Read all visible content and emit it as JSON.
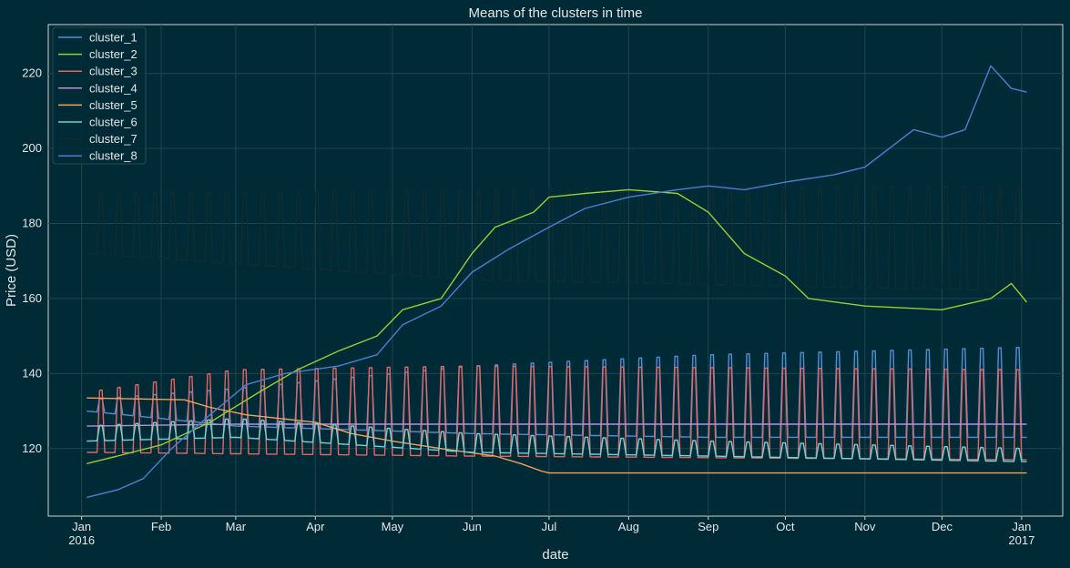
{
  "chart_data": {
    "type": "line",
    "title": "Means of the clusters in time",
    "xlabel": "date",
    "ylabel": "Price (USD)",
    "xlim": [
      "2015-12-19",
      "2017-01-17"
    ],
    "ylim": [
      102,
      233
    ],
    "grid": true,
    "legend_position": "top-left",
    "x_ticks": [
      {
        "date": "2016-01-01",
        "label": "Jan",
        "sublabel": "2016"
      },
      {
        "date": "2016-02-01",
        "label": "Feb",
        "sublabel": ""
      },
      {
        "date": "2016-03-01",
        "label": "Mar",
        "sublabel": ""
      },
      {
        "date": "2016-04-01",
        "label": "Apr",
        "sublabel": ""
      },
      {
        "date": "2016-05-01",
        "label": "May",
        "sublabel": ""
      },
      {
        "date": "2016-06-01",
        "label": "Jun",
        "sublabel": ""
      },
      {
        "date": "2016-07-01",
        "label": "Jul",
        "sublabel": ""
      },
      {
        "date": "2016-08-01",
        "label": "Aug",
        "sublabel": ""
      },
      {
        "date": "2016-09-01",
        "label": "Sep",
        "sublabel": ""
      },
      {
        "date": "2016-10-01",
        "label": "Oct",
        "sublabel": ""
      },
      {
        "date": "2016-11-01",
        "label": "Nov",
        "sublabel": ""
      },
      {
        "date": "2016-12-01",
        "label": "Dec",
        "sublabel": ""
      },
      {
        "date": "2017-01-01",
        "label": "Jan",
        "sublabel": "2017"
      }
    ],
    "y_ticks": [
      120,
      140,
      160,
      180,
      200,
      220
    ],
    "series": [
      {
        "name": "cluster_1",
        "color": "#4f8fd8",
        "baseline": [
          [
            "2016-01-03",
            130
          ],
          [
            "2016-03-01",
            126
          ],
          [
            "2016-06-01",
            124
          ],
          [
            "2016-09-01",
            123
          ],
          [
            "2017-01-03",
            123
          ]
        ],
        "peak": [
          [
            "2016-01-03",
            133
          ],
          [
            "2016-03-01",
            136
          ],
          [
            "2016-06-01",
            142
          ],
          [
            "2016-09-01",
            145
          ],
          [
            "2017-01-03",
            147
          ]
        ]
      },
      {
        "name": "cluster_2",
        "color": "#9acd32",
        "points": [
          [
            "2016-01-03",
            116
          ],
          [
            "2016-01-15",
            118
          ],
          [
            "2016-02-01",
            121
          ],
          [
            "2016-02-20",
            127
          ],
          [
            "2016-03-10",
            135
          ],
          [
            "2016-03-25",
            141
          ],
          [
            "2016-04-10",
            146
          ],
          [
            "2016-04-25",
            150
          ],
          [
            "2016-05-05",
            157
          ],
          [
            "2016-05-20",
            160
          ],
          [
            "2016-06-01",
            172
          ],
          [
            "2016-06-10",
            179
          ],
          [
            "2016-06-25",
            183
          ],
          [
            "2016-07-01",
            187
          ],
          [
            "2016-07-15",
            188
          ],
          [
            "2016-08-01",
            189
          ],
          [
            "2016-08-20",
            188
          ],
          [
            "2016-09-01",
            183
          ],
          [
            "2016-09-15",
            172
          ],
          [
            "2016-10-01",
            166
          ],
          [
            "2016-10-10",
            160
          ],
          [
            "2016-11-01",
            158
          ],
          [
            "2016-12-01",
            157
          ],
          [
            "2016-12-20",
            160
          ],
          [
            "2016-12-28",
            164
          ],
          [
            "2017-01-03",
            159
          ]
        ]
      },
      {
        "name": "cluster_3",
        "color": "#e06666",
        "baseline": [
          [
            "2016-01-03",
            119
          ],
          [
            "2016-06-01",
            118
          ],
          [
            "2017-01-03",
            117
          ]
        ],
        "peak": [
          [
            "2016-01-03",
            135
          ],
          [
            "2016-03-01",
            141
          ],
          [
            "2016-06-01",
            142
          ],
          [
            "2017-01-03",
            141
          ]
        ]
      },
      {
        "name": "cluster_4",
        "color": "#b88fd8",
        "points": [
          [
            "2016-01-03",
            126
          ],
          [
            "2016-03-01",
            126.5
          ],
          [
            "2016-06-01",
            126.5
          ],
          [
            "2016-09-01",
            126.5
          ],
          [
            "2017-01-03",
            126.5
          ]
        ]
      },
      {
        "name": "cluster_5",
        "color": "#f5a15c",
        "points": [
          [
            "2016-01-03",
            133.5
          ],
          [
            "2016-02-10",
            133
          ],
          [
            "2016-02-20",
            131
          ],
          [
            "2016-03-05",
            129
          ],
          [
            "2016-04-01",
            127
          ],
          [
            "2016-04-15",
            124
          ],
          [
            "2016-05-01",
            122
          ],
          [
            "2016-05-20",
            120
          ],
          [
            "2016-06-10",
            118
          ],
          [
            "2016-06-20",
            116
          ],
          [
            "2016-06-28",
            114
          ],
          [
            "2016-07-01",
            113.5
          ],
          [
            "2016-09-01",
            113.5
          ],
          [
            "2017-01-03",
            113.5
          ]
        ]
      },
      {
        "name": "cluster_6",
        "color": "#6fd3d8",
        "baseline": [
          [
            "2016-01-03",
            122
          ],
          [
            "2016-03-01",
            123
          ],
          [
            "2016-06-01",
            119
          ],
          [
            "2016-09-01",
            118
          ],
          [
            "2017-01-03",
            116.5
          ]
        ],
        "peak": [
          [
            "2016-01-03",
            126
          ],
          [
            "2016-03-01",
            128
          ],
          [
            "2016-06-01",
            124
          ],
          [
            "2016-09-01",
            122
          ],
          [
            "2017-01-03",
            120
          ]
        ]
      },
      {
        "name": "cluster_7",
        "color": "#132c30",
        "baseline": [
          [
            "2016-01-03",
            172
          ],
          [
            "2016-06-01",
            165
          ],
          [
            "2017-01-03",
            162
          ]
        ],
        "peak": [
          [
            "2016-01-03",
            188
          ],
          [
            "2016-06-01",
            189
          ],
          [
            "2017-01-03",
            190
          ]
        ]
      },
      {
        "name": "cluster_8",
        "color": "#4a7fd4",
        "points": [
          [
            "2016-01-03",
            107
          ],
          [
            "2016-01-15",
            109
          ],
          [
            "2016-01-25",
            112
          ],
          [
            "2016-02-05",
            120
          ],
          [
            "2016-02-20",
            129
          ],
          [
            "2016-03-05",
            137
          ],
          [
            "2016-03-20",
            140
          ],
          [
            "2016-04-10",
            142
          ],
          [
            "2016-04-25",
            145
          ],
          [
            "2016-05-05",
            153
          ],
          [
            "2016-05-20",
            158
          ],
          [
            "2016-06-01",
            167
          ],
          [
            "2016-06-15",
            173
          ],
          [
            "2016-07-01",
            179
          ],
          [
            "2016-07-15",
            184
          ],
          [
            "2016-08-01",
            187
          ],
          [
            "2016-08-20",
            189
          ],
          [
            "2016-09-01",
            190
          ],
          [
            "2016-09-15",
            189
          ],
          [
            "2016-10-01",
            191
          ],
          [
            "2016-10-20",
            193
          ],
          [
            "2016-11-01",
            195
          ],
          [
            "2016-11-20",
            205
          ],
          [
            "2016-12-01",
            203
          ],
          [
            "2016-12-10",
            205
          ],
          [
            "2016-12-20",
            222
          ],
          [
            "2016-12-28",
            216
          ],
          [
            "2017-01-03",
            215
          ]
        ]
      }
    ]
  }
}
